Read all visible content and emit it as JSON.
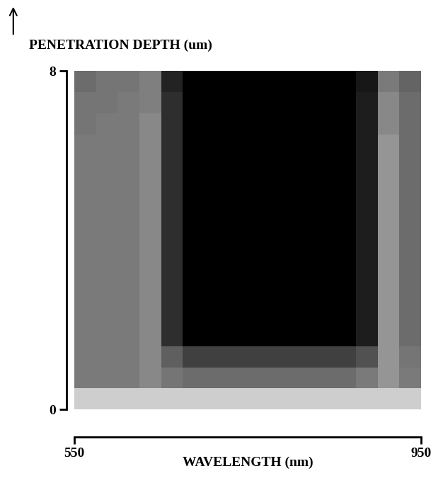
{
  "chart_data": {
    "type": "heatmap",
    "xlabel": "WAVELENGTH (nm)",
    "ylabel": "PENETRATION DEPTH (um)",
    "xlim": [
      550,
      950
    ],
    "ylim": [
      0,
      8
    ],
    "xticks": [
      550,
      950
    ],
    "yticks": [
      0,
      8
    ],
    "x_edges": [
      550,
      575,
      600,
      625,
      650,
      675,
      700,
      725,
      750,
      775,
      800,
      825,
      850,
      875,
      900,
      925,
      950
    ],
    "y_edges": [
      0,
      0.5,
      1,
      1.5,
      2,
      2.5,
      3,
      3.5,
      4,
      4.5,
      5,
      5.5,
      6,
      6.5,
      7,
      7.5,
      8
    ],
    "value_range": [
      0,
      1
    ],
    "cells": [
      [
        0.3,
        0.3,
        0.3,
        0.3,
        0.3,
        0.3,
        0.3,
        0.3,
        0.3,
        0.3,
        0.3,
        0.3,
        0.3,
        0.3,
        0.3,
        0.3
      ],
      [
        0.6,
        0.6,
        0.6,
        0.55,
        0.62,
        0.65,
        0.65,
        0.65,
        0.65,
        0.65,
        0.65,
        0.65,
        0.65,
        0.6,
        0.5,
        0.6
      ],
      [
        0.6,
        0.6,
        0.6,
        0.55,
        0.7,
        0.8,
        0.8,
        0.8,
        0.8,
        0.8,
        0.8,
        0.8,
        0.8,
        0.75,
        0.5,
        0.62
      ],
      [
        0.6,
        0.6,
        0.6,
        0.55,
        0.85,
        1.0,
        1.0,
        1.0,
        1.0,
        1.0,
        1.0,
        1.0,
        1.0,
        0.9,
        0.5,
        0.65
      ],
      [
        0.6,
        0.6,
        0.6,
        0.55,
        0.85,
        1.0,
        1.0,
        1.0,
        1.0,
        1.0,
        1.0,
        1.0,
        1.0,
        0.9,
        0.5,
        0.65
      ],
      [
        0.6,
        0.6,
        0.6,
        0.55,
        0.85,
        1.0,
        1.0,
        1.0,
        1.0,
        1.0,
        1.0,
        1.0,
        1.0,
        0.9,
        0.5,
        0.65
      ],
      [
        0.6,
        0.6,
        0.6,
        0.55,
        0.85,
        1.0,
        1.0,
        1.0,
        1.0,
        1.0,
        1.0,
        1.0,
        1.0,
        0.9,
        0.5,
        0.65
      ],
      [
        0.6,
        0.6,
        0.6,
        0.55,
        0.85,
        1.0,
        1.0,
        1.0,
        1.0,
        1.0,
        1.0,
        1.0,
        1.0,
        0.9,
        0.5,
        0.65
      ],
      [
        0.6,
        0.6,
        0.6,
        0.55,
        0.85,
        1.0,
        1.0,
        1.0,
        1.0,
        1.0,
        1.0,
        1.0,
        1.0,
        0.9,
        0.5,
        0.65
      ],
      [
        0.6,
        0.6,
        0.6,
        0.55,
        0.85,
        1.0,
        1.0,
        1.0,
        1.0,
        1.0,
        1.0,
        1.0,
        1.0,
        0.9,
        0.5,
        0.65
      ],
      [
        0.6,
        0.6,
        0.6,
        0.55,
        0.85,
        1.0,
        1.0,
        1.0,
        1.0,
        1.0,
        1.0,
        1.0,
        1.0,
        0.9,
        0.5,
        0.65
      ],
      [
        0.6,
        0.6,
        0.6,
        0.55,
        0.85,
        1.0,
        1.0,
        1.0,
        1.0,
        1.0,
        1.0,
        1.0,
        1.0,
        0.9,
        0.5,
        0.65
      ],
      [
        0.6,
        0.6,
        0.6,
        0.55,
        0.85,
        1.0,
        1.0,
        1.0,
        1.0,
        1.0,
        1.0,
        1.0,
        1.0,
        0.9,
        0.5,
        0.65
      ],
      [
        0.62,
        0.6,
        0.6,
        0.55,
        0.85,
        1.0,
        1.0,
        1.0,
        1.0,
        1.0,
        1.0,
        1.0,
        1.0,
        0.9,
        0.55,
        0.65
      ],
      [
        0.62,
        0.62,
        0.6,
        0.58,
        0.85,
        1.0,
        1.0,
        1.0,
        1.0,
        1.0,
        1.0,
        1.0,
        1.0,
        0.9,
        0.55,
        0.65
      ],
      [
        0.65,
        0.62,
        0.62,
        0.58,
        0.88,
        1.0,
        1.0,
        1.0,
        1.0,
        1.0,
        1.0,
        1.0,
        1.0,
        0.92,
        0.6,
        0.68
      ]
    ]
  }
}
